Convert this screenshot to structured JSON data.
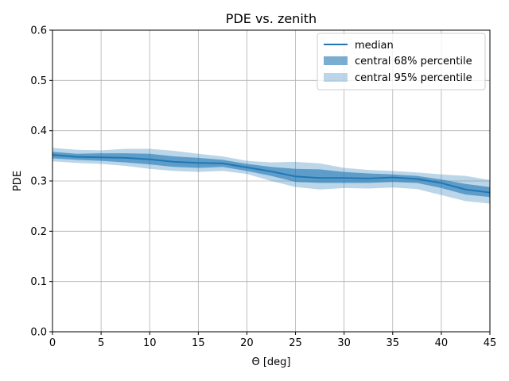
{
  "chart_data": {
    "type": "line",
    "title": "PDE vs. zenith",
    "xlabel": "Θ [deg]",
    "ylabel": "PDE",
    "xlim": [
      0,
      45
    ],
    "ylim": [
      0,
      0.6
    ],
    "xticks": [
      0,
      5,
      10,
      15,
      20,
      25,
      30,
      35,
      40,
      45
    ],
    "yticks": [
      0.0,
      0.1,
      0.2,
      0.3,
      0.4,
      0.5,
      0.6
    ],
    "xtick_labels": [
      "0",
      "5",
      "10",
      "15",
      "20",
      "25",
      "30",
      "35",
      "40",
      "45"
    ],
    "ytick_labels": [
      "0.0",
      "0.1",
      "0.2",
      "0.3",
      "0.4",
      "0.5",
      "0.6"
    ],
    "grid": true,
    "legend_position": "top-right",
    "x": [
      0,
      2.5,
      5,
      7.5,
      10,
      12.5,
      15,
      17.5,
      20,
      22.5,
      25,
      27.5,
      30,
      32.5,
      35,
      37.5,
      40,
      42.5,
      45
    ],
    "series": [
      {
        "name": "median",
        "kind": "line",
        "color": "#1f77b4",
        "values": [
          0.352,
          0.348,
          0.347,
          0.346,
          0.343,
          0.338,
          0.336,
          0.335,
          0.327,
          0.319,
          0.309,
          0.306,
          0.306,
          0.305,
          0.307,
          0.304,
          0.296,
          0.283,
          0.277
        ]
      },
      {
        "name": "central 68% percentile",
        "kind": "band",
        "color": "#1f77b4",
        "opacity": 0.6,
        "lower": [
          0.345,
          0.342,
          0.34,
          0.337,
          0.333,
          0.328,
          0.326,
          0.328,
          0.32,
          0.31,
          0.298,
          0.296,
          0.296,
          0.296,
          0.298,
          0.296,
          0.286,
          0.273,
          0.268
        ],
        "upper": [
          0.358,
          0.354,
          0.355,
          0.355,
          0.354,
          0.349,
          0.346,
          0.342,
          0.334,
          0.328,
          0.324,
          0.323,
          0.318,
          0.315,
          0.313,
          0.31,
          0.303,
          0.294,
          0.288
        ]
      },
      {
        "name": "central 95% percentile",
        "kind": "band",
        "color": "#1f77b4",
        "opacity": 0.3,
        "lower": [
          0.339,
          0.336,
          0.334,
          0.33,
          0.324,
          0.32,
          0.318,
          0.32,
          0.314,
          0.3,
          0.288,
          0.283,
          0.286,
          0.285,
          0.287,
          0.284,
          0.272,
          0.26,
          0.255
        ],
        "upper": [
          0.366,
          0.362,
          0.361,
          0.364,
          0.364,
          0.36,
          0.354,
          0.349,
          0.34,
          0.337,
          0.338,
          0.335,
          0.326,
          0.322,
          0.32,
          0.317,
          0.313,
          0.31,
          0.302
        ]
      }
    ]
  }
}
